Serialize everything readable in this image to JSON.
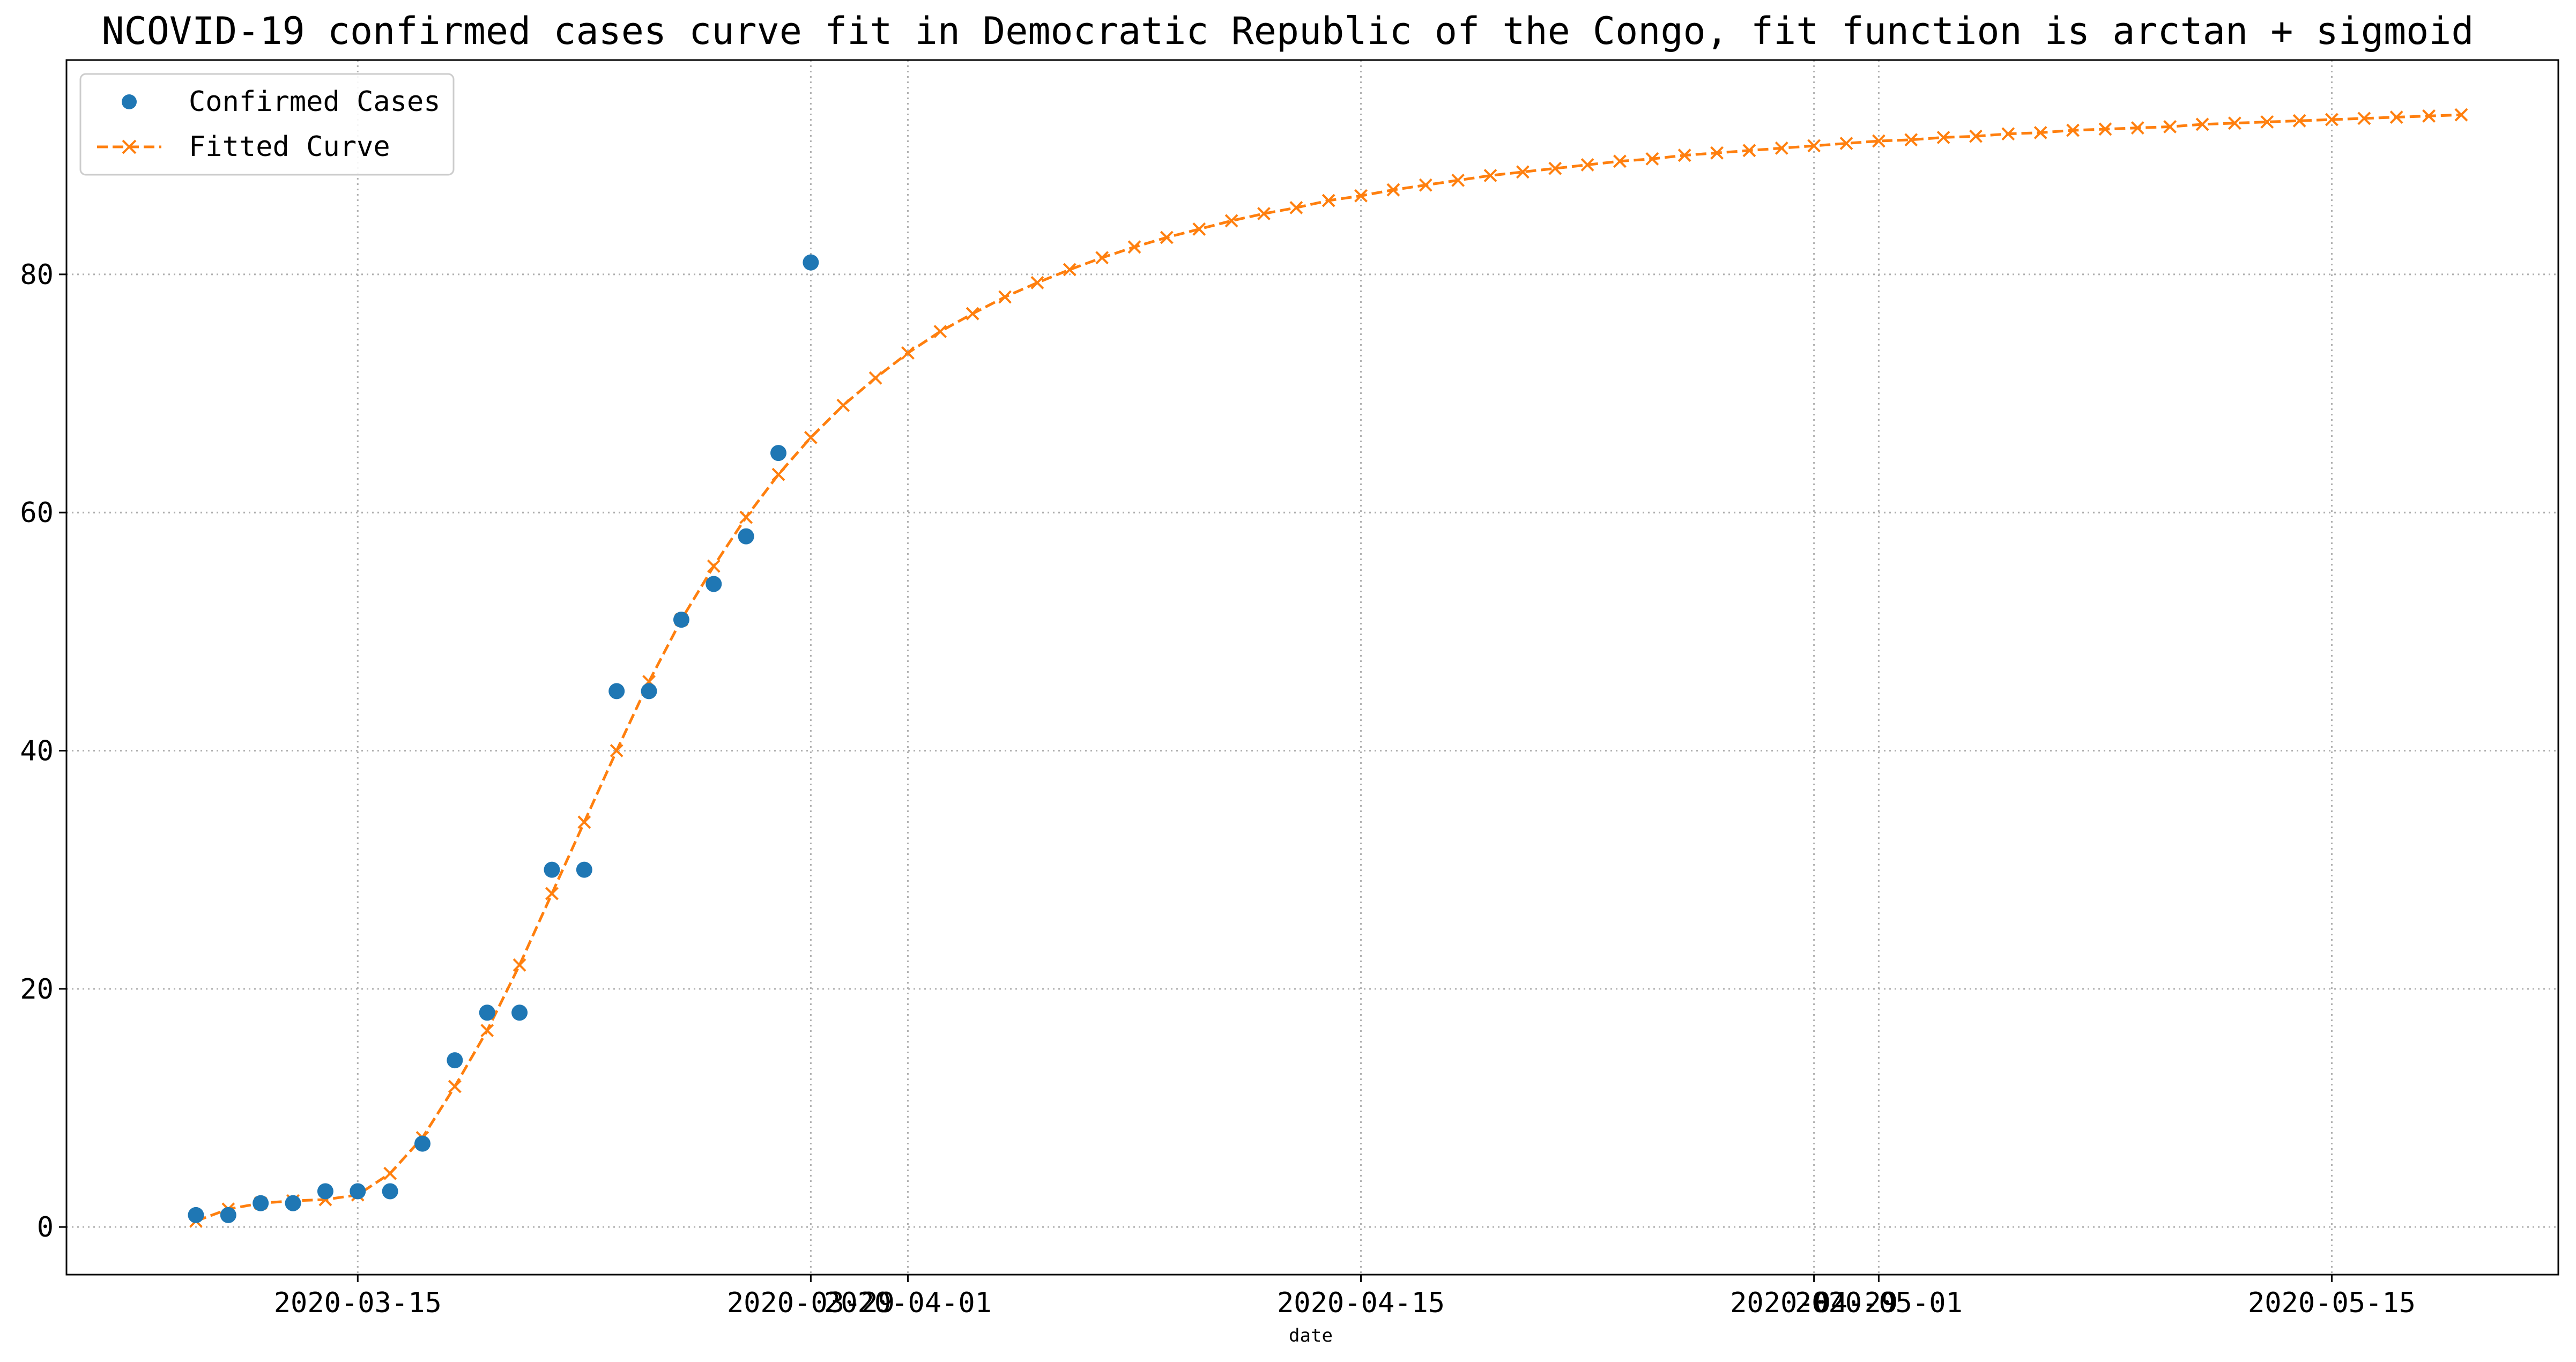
{
  "chart_data": {
    "type": "line",
    "title": "NCOVID-19 confirmed cases curve fit in Democratic Republic of the Congo, fit function is arctan + sigmoid",
    "xlabel": "date",
    "ylabel": "",
    "grid": true,
    "legend_position": "top-left",
    "x_ticks": [
      "2020-03-15",
      "2020-03-29",
      "2020-04-01",
      "2020-04-15",
      "2020-04-29",
      "2020-05-01",
      "2020-05-15"
    ],
    "y_ticks": [
      0,
      20,
      40,
      60,
      80
    ],
    "ylim": [
      -4,
      98
    ],
    "xlim": [
      "2020-03-06",
      "2020-05-22"
    ],
    "colors": {
      "confirmed": "#1f77b4",
      "fitted": "#ff7f0e",
      "grid": "#b0b0b0"
    },
    "series": [
      {
        "name": "Confirmed Cases",
        "style": "markers",
        "start_date": "2020-03-10",
        "values": [
          1,
          1,
          2,
          2,
          3,
          3,
          3,
          7,
          14,
          18,
          18,
          30,
          30,
          45,
          45,
          51,
          54,
          58,
          65,
          81
        ]
      },
      {
        "name": "Fitted Curve",
        "style": "dashed-line-x-markers",
        "start_date": "2020-03-10",
        "values": [
          0.5,
          1.5,
          2.0,
          2.2,
          2.3,
          2.7,
          4.5,
          7.5,
          11.8,
          16.5,
          22.0,
          28.0,
          34.0,
          40.0,
          45.8,
          51.0,
          55.5,
          59.6,
          63.2,
          66.3,
          69.0,
          71.3,
          73.4,
          75.2,
          76.7,
          78.1,
          79.3,
          80.4,
          81.4,
          82.3,
          83.1,
          83.8,
          84.5,
          85.1,
          85.6,
          86.2,
          86.6,
          87.1,
          87.5,
          87.9,
          88.3,
          88.6,
          88.9,
          89.2,
          89.5,
          89.7,
          90.0,
          90.2,
          90.4,
          90.6,
          90.8,
          91.0,
          91.2,
          91.3,
          91.5,
          91.6,
          91.8,
          91.9,
          92.1,
          92.2,
          92.3,
          92.4,
          92.6,
          92.7,
          92.8,
          92.9,
          93.0,
          93.1,
          93.2,
          93.3,
          93.4
        ]
      }
    ]
  }
}
